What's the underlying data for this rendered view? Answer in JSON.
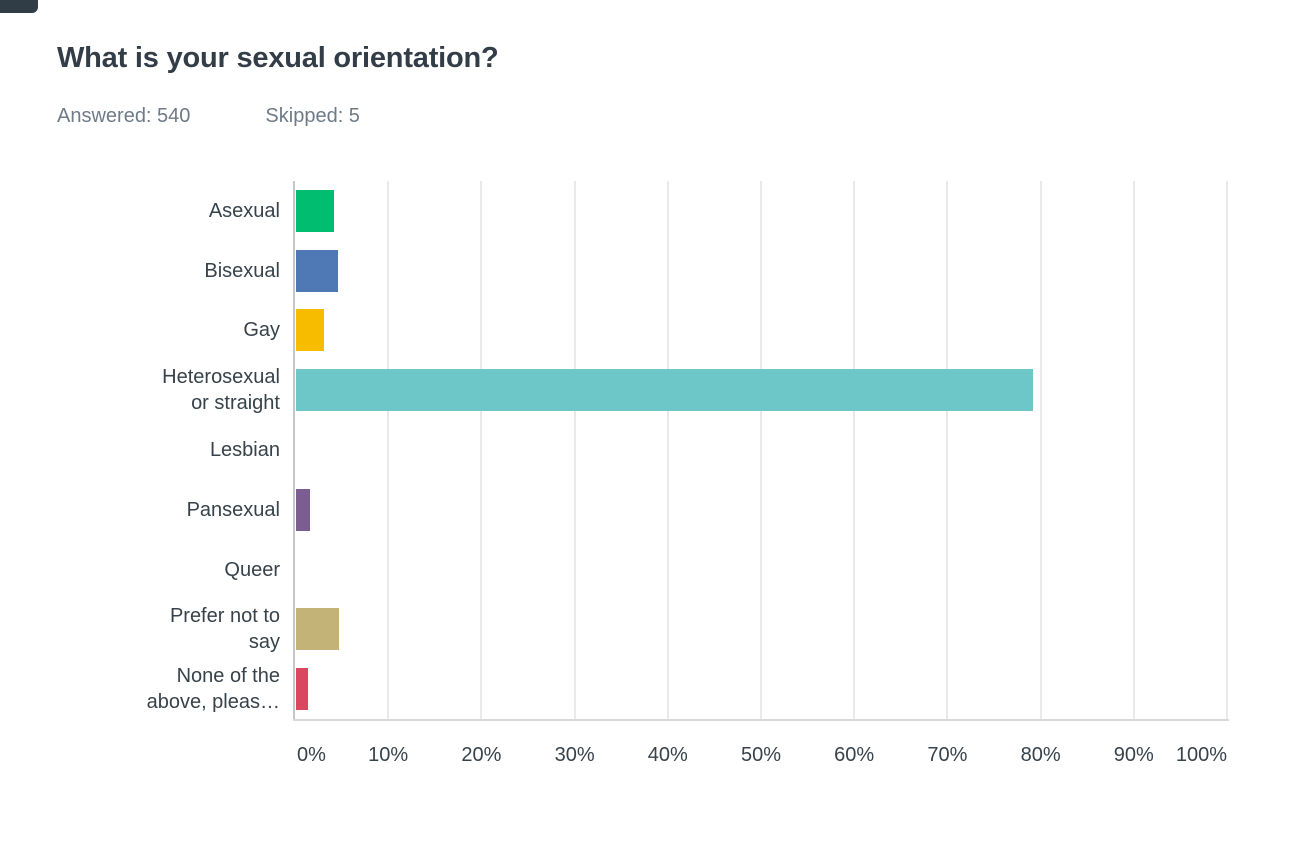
{
  "header": {
    "title": "What is your sexual orientation?",
    "answered": "Answered: 540",
    "skipped": "Skipped: 5"
  },
  "chart_data": {
    "type": "bar",
    "orientation": "horizontal",
    "title": "What is your sexual orientation?",
    "xlabel": "",
    "ylabel": "",
    "x_axis": {
      "min": 0,
      "max": 100,
      "tick_step": 10,
      "tick_labels": [
        "0%",
        "10%",
        "20%",
        "30%",
        "40%",
        "50%",
        "60%",
        "70%",
        "80%",
        "90%",
        "100%"
      ],
      "unit": "percent"
    },
    "grid": "vertical-only",
    "legend": "none",
    "categories": [
      "Asexual",
      "Bisexual",
      "Gay",
      "Heterosexual or straight",
      "Lesbian",
      "Pansexual",
      "Queer",
      "Prefer not to say",
      "None of the above, pleas…"
    ],
    "category_display_lines": [
      [
        "Asexual"
      ],
      [
        "Bisexual"
      ],
      [
        "Gay"
      ],
      [
        "Heterosexual",
        "or straight"
      ],
      [
        "Lesbian"
      ],
      [
        "Pansexual"
      ],
      [
        "Queer"
      ],
      [
        "Prefer not to",
        "say"
      ],
      [
        "None of the",
        "above, pleas…"
      ]
    ],
    "values": [
      4.1,
      4.5,
      3.0,
      79.1,
      0,
      1.5,
      0,
      4.6,
      1.3
    ],
    "bar_colors": [
      "#00bd6f",
      "#4e79b4",
      "#f7bb00",
      "#6dc6c8",
      null,
      "#7b5d92",
      null,
      "#c3b377",
      "#d9485e"
    ]
  },
  "colors": {
    "title_text": "#333d47",
    "meta_text": "#6e7b87",
    "label_text": "#37424a",
    "tick_text": "#37424a",
    "axis_line": "#c6c6c6",
    "gridline": "#e9e9e9",
    "plot_baseline": "#d9d9d9",
    "background": "#ffffff",
    "corner_chip": "#303c46"
  }
}
